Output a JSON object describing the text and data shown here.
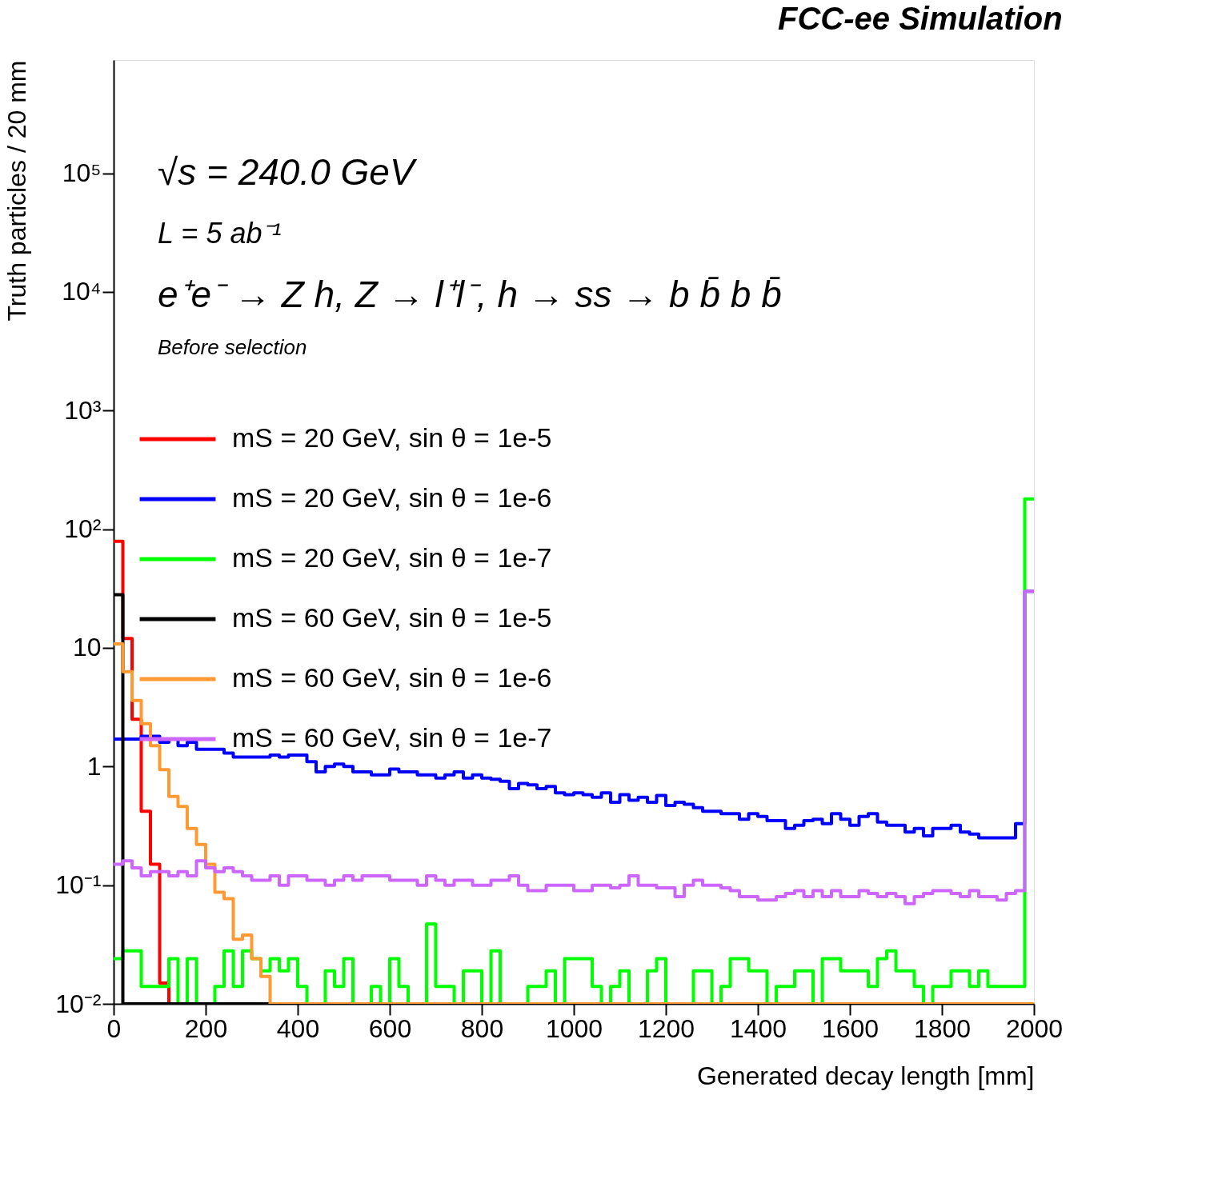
{
  "chart_data": {
    "type": "histogram",
    "title": "FCC-ee Simulation",
    "xlabel": "Generated decay length [mm]",
    "ylabel": "Truth particles / 20 mm",
    "annotations": [
      "√s = 240.0 GeV",
      "L = 5 ab⁻¹",
      "e⁺e⁻ → Z h, Z → l⁺l⁻, h → ss → b b̄ b b̄",
      "Before selection"
    ],
    "bins": [
      0,
      20,
      40,
      60,
      80,
      100,
      120,
      140,
      160,
      180,
      200,
      220,
      240,
      260,
      280,
      300,
      320,
      340,
      360,
      380,
      400,
      420,
      440,
      460,
      480,
      500,
      520,
      540,
      560,
      580,
      600,
      620,
      640,
      660,
      680,
      700,
      720,
      740,
      760,
      780,
      800,
      820,
      840,
      860,
      880,
      900,
      920,
      940,
      960,
      980,
      1000,
      1020,
      1040,
      1060,
      1080,
      1100,
      1120,
      1140,
      1160,
      1180,
      1200,
      1220,
      1240,
      1260,
      1280,
      1300,
      1320,
      1340,
      1360,
      1380,
      1400,
      1420,
      1440,
      1460,
      1480,
      1500,
      1520,
      1540,
      1560,
      1580,
      1600,
      1620,
      1640,
      1660,
      1680,
      1700,
      1720,
      1740,
      1760,
      1780,
      1800,
      1820,
      1840,
      1860,
      1880,
      1900,
      1920,
      1940,
      1960,
      1980,
      2000
    ],
    "series": [
      {
        "name": "mS = 20 GeV, sin θ = 1e-5",
        "color": "#ff0000",
        "values": [
          79,
          12,
          2.5,
          0.42,
          0.15,
          0.015,
          null,
          null,
          null,
          null,
          null,
          null,
          null,
          null,
          null,
          null,
          null,
          null,
          null,
          null,
          null,
          null,
          null,
          null,
          null,
          null,
          null,
          null,
          null,
          null,
          null,
          null,
          null,
          null,
          null,
          null,
          null,
          null,
          null,
          null,
          null,
          null,
          null,
          null,
          null,
          null,
          null,
          null,
          null,
          null,
          null,
          null,
          null,
          null,
          null,
          null,
          null,
          null,
          null,
          null,
          null,
          null,
          null,
          null,
          null,
          null,
          null,
          null,
          null,
          null,
          null,
          null,
          null,
          null,
          null,
          null,
          null,
          null,
          null,
          null,
          null,
          null,
          null,
          null,
          null,
          null,
          null,
          null,
          null,
          null,
          null,
          null,
          null,
          null,
          null,
          null,
          null,
          null,
          null,
          null
        ]
      },
      {
        "name": "mS = 20 GeV, sin θ = 1e-6",
        "color": "#0000ff",
        "values": [
          1.7,
          1.7,
          1.7,
          1.8,
          1.8,
          1.6,
          1.7,
          1.5,
          1.6,
          1.4,
          1.4,
          1.4,
          1.3,
          1.2,
          1.2,
          1.2,
          1.2,
          1.25,
          1.2,
          1.25,
          1.25,
          1.1,
          0.9,
          1.0,
          1.05,
          1.0,
          0.9,
          0.9,
          0.85,
          0.85,
          0.95,
          0.9,
          0.9,
          0.85,
          0.85,
          0.8,
          0.85,
          0.9,
          0.8,
          0.85,
          0.8,
          0.78,
          0.75,
          0.65,
          0.72,
          0.7,
          0.65,
          0.68,
          0.6,
          0.58,
          0.6,
          0.58,
          0.55,
          0.6,
          0.5,
          0.58,
          0.52,
          0.55,
          0.5,
          0.57,
          0.47,
          0.5,
          0.48,
          0.45,
          0.42,
          0.42,
          0.4,
          0.4,
          0.36,
          0.4,
          0.38,
          0.35,
          0.35,
          0.3,
          0.32,
          0.35,
          0.36,
          0.33,
          0.4,
          0.36,
          0.32,
          0.38,
          0.4,
          0.34,
          0.32,
          0.32,
          0.28,
          0.3,
          0.26,
          0.3,
          0.3,
          0.32,
          0.28,
          0.27,
          0.25,
          0.25,
          0.25,
          0.25,
          0.33,
          30
        ]
      },
      {
        "name": "mS = 20 GeV, sin θ = 1e-7",
        "color": "#00ff00",
        "values": [
          0.024,
          0.028,
          0.028,
          0.014,
          0.014,
          0.014,
          0.024,
          null,
          0.024,
          null,
          null,
          0.014,
          0.028,
          0.014,
          0.028,
          0.024,
          0.019,
          0.024,
          0.019,
          0.024,
          0.014,
          null,
          null,
          0.019,
          0.014,
          0.024,
          null,
          null,
          0.014,
          null,
          0.024,
          0.014,
          null,
          null,
          0.047,
          0.014,
          0.014,
          null,
          0.019,
          0.019,
          null,
          0.028,
          null,
          null,
          null,
          0.014,
          0.014,
          0.019,
          null,
          0.024,
          0.024,
          0.024,
          0.014,
          null,
          0.014,
          0.019,
          null,
          null,
          0.019,
          0.024,
          null,
          null,
          null,
          0.019,
          0.019,
          null,
          0.014,
          0.024,
          0.024,
          0.019,
          0.019,
          null,
          0.014,
          0.014,
          0.019,
          0.019,
          null,
          0.024,
          0.024,
          0.019,
          0.019,
          0.019,
          0.014,
          0.024,
          0.028,
          0.019,
          0.019,
          0.014,
          null,
          0.014,
          0.014,
          0.019,
          0.019,
          0.014,
          0.019,
          0.014,
          0.014,
          0.014,
          0.014,
          180
        ]
      },
      {
        "name": "mS = 60 GeV, sin θ = 1e-5",
        "color": "#000000",
        "values": [
          28,
          null,
          null,
          null,
          null,
          null,
          null,
          null,
          null,
          null,
          null,
          null,
          null,
          null,
          null,
          null,
          null,
          null,
          null,
          null,
          null,
          null,
          null,
          null,
          null,
          null,
          null,
          null,
          null,
          null,
          null,
          null,
          null,
          null,
          null,
          null,
          null,
          null,
          null,
          null,
          null,
          null,
          null,
          null,
          null,
          null,
          null,
          null,
          null,
          null,
          null,
          null,
          null,
          null,
          null,
          null,
          null,
          null,
          null,
          null,
          null,
          null,
          null,
          null,
          null,
          null,
          null,
          null,
          null,
          null,
          null,
          null,
          null,
          null,
          null,
          null,
          null,
          null,
          null,
          null,
          null,
          null,
          null,
          null,
          null,
          null,
          null,
          null,
          null,
          null,
          null,
          null,
          null,
          null,
          null,
          null,
          null,
          null,
          null,
          null
        ]
      },
      {
        "name": "mS = 60 GeV, sin θ = 1e-6",
        "color": "#ff9933",
        "values": [
          10.8,
          6.3,
          3.6,
          2.3,
          1.5,
          0.94,
          0.56,
          0.46,
          0.3,
          0.22,
          0.15,
          0.087,
          0.077,
          0.035,
          0.038,
          0.024,
          0.017,
          null,
          null,
          null,
          null,
          null,
          null,
          null,
          null,
          null,
          null,
          null,
          null,
          null,
          null,
          null,
          null,
          null,
          null,
          null,
          null,
          null,
          null,
          null,
          null,
          null,
          null,
          null,
          null,
          null,
          null,
          null,
          null,
          null,
          null,
          null,
          null,
          null,
          null,
          null,
          null,
          null,
          null,
          null,
          null,
          null,
          null,
          null,
          null,
          null,
          null,
          null,
          null,
          null,
          null,
          null,
          null,
          null,
          null,
          null,
          null,
          null,
          null,
          null,
          null,
          null,
          null,
          null,
          null,
          null,
          null,
          null,
          null,
          null,
          null,
          null,
          null,
          null,
          null,
          null,
          null,
          null,
          null,
          null
        ]
      },
      {
        "name": "mS = 60 GeV, sin θ = 1e-7",
        "color": "#cc66ff",
        "values": [
          0.15,
          0.16,
          0.14,
          0.12,
          0.13,
          0.13,
          0.12,
          0.13,
          0.12,
          0.16,
          0.14,
          0.13,
          0.14,
          0.13,
          0.12,
          0.11,
          0.11,
          0.12,
          0.1,
          0.12,
          0.12,
          0.11,
          0.11,
          0.1,
          0.11,
          0.12,
          0.11,
          0.12,
          0.12,
          0.12,
          0.11,
          0.11,
          0.11,
          0.1,
          0.12,
          0.11,
          0.1,
          0.11,
          0.11,
          0.1,
          0.1,
          0.11,
          0.11,
          0.12,
          0.1,
          0.09,
          0.09,
          0.1,
          0.1,
          0.1,
          0.09,
          0.09,
          0.1,
          0.1,
          0.095,
          0.1,
          0.12,
          0.1,
          0.1,
          0.095,
          0.095,
          0.08,
          0.1,
          0.11,
          0.1,
          0.1,
          0.095,
          0.09,
          0.08,
          0.08,
          0.075,
          0.075,
          0.08,
          0.085,
          0.09,
          0.08,
          0.09,
          0.08,
          0.09,
          0.08,
          0.08,
          0.09,
          0.085,
          0.08,
          0.085,
          0.08,
          0.07,
          0.08,
          0.085,
          0.09,
          0.09,
          0.085,
          0.08,
          0.09,
          0.08,
          0.08,
          0.075,
          0.085,
          0.09,
          30
        ]
      }
    ],
    "xlim": [
      0,
      2000
    ],
    "xticks": [
      0,
      200,
      400,
      600,
      800,
      1000,
      1200,
      1400,
      1600,
      1800,
      2000
    ],
    "ylim": [
      0.01,
      900000
    ],
    "log": true,
    "yticks": [
      {
        "value": 0.01,
        "label": "10⁻²"
      },
      {
        "value": 0.1,
        "label": "10⁻¹"
      },
      1,
      10,
      {
        "value": 100,
        "label": "10²"
      },
      {
        "value": 1000,
        "label": "10³"
      },
      {
        "value": 10000,
        "label": "10⁴"
      },
      {
        "value": 100000,
        "label": "10⁵"
      }
    ],
    "grid": false,
    "legend": "left",
    "line_style": "solid",
    "marker": "none"
  }
}
